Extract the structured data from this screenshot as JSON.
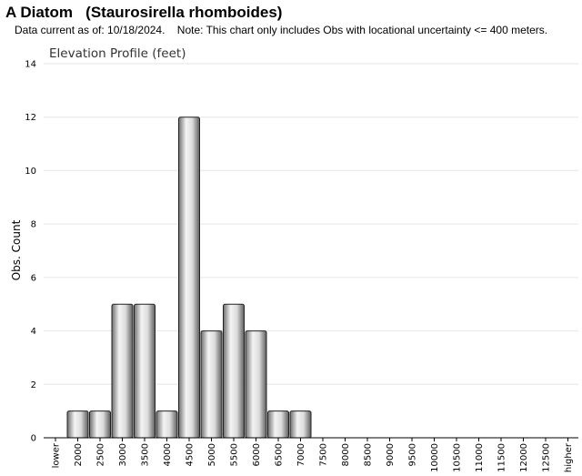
{
  "header": {
    "title": "A Diatom   (Staurosirella rhomboides)",
    "subtitle": "Data current as of: 10/18/2024.    Note: This chart only includes Obs with locational uncertainty <= 400 meters."
  },
  "chart_data": {
    "type": "bar",
    "title": "Elevation Profile (feet)",
    "xlabel": "",
    "ylabel": "Obs. Count",
    "ylim": [
      0,
      14
    ],
    "yticks": [
      0,
      2,
      4,
      6,
      8,
      10,
      12,
      14
    ],
    "grid": true,
    "legend": "none",
    "bar_color": "#b0b0b0",
    "categories": [
      "lower",
      "2000",
      "2500",
      "3000",
      "3500",
      "4000",
      "4500",
      "5000",
      "5500",
      "6000",
      "6500",
      "7000",
      "7500",
      "8000",
      "8500",
      "9000",
      "9500",
      "10000",
      "10500",
      "11000",
      "11500",
      "12000",
      "12500",
      "higher"
    ],
    "values": [
      0,
      1,
      1,
      5,
      5,
      1,
      12,
      4,
      5,
      4,
      1,
      1,
      0,
      0,
      0,
      0,
      0,
      0,
      0,
      0,
      0,
      0,
      0,
      0
    ]
  }
}
